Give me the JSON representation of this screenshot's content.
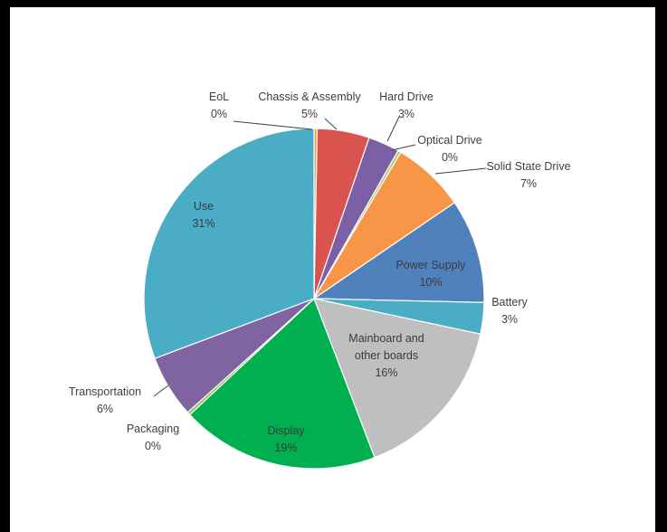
{
  "chart_data": {
    "type": "pie",
    "title": "",
    "slices": [
      {
        "label": "EoL",
        "value": 0.3,
        "display": "0%",
        "color": "#f0a040"
      },
      {
        "label": "Chassis & Assembly",
        "value": 5,
        "display": "5%",
        "color": "#d9534f"
      },
      {
        "label": "Hard Drive",
        "value": 3,
        "display": "3%",
        "color": "#7d5fa5"
      },
      {
        "label": "Optical Drive",
        "value": 0.3,
        "display": "0%",
        "color": "#b0c87a"
      },
      {
        "label": "Solid State Drive",
        "value": 7,
        "display": "7%",
        "color": "#f79646"
      },
      {
        "label": "Power Supply",
        "value": 10,
        "display": "10%",
        "color": "#4f81bd"
      },
      {
        "label": "Battery",
        "value": 3,
        "display": "3%",
        "color": "#4bacc6"
      },
      {
        "label": "Mainboard and other boards",
        "value": 16,
        "display": "16%",
        "color": "#bfbfbf"
      },
      {
        "label": "Display",
        "value": 19,
        "display": "19%",
        "color": "#00b050"
      },
      {
        "label": "Packaging",
        "value": 0.3,
        "display": "0%",
        "color": "#9bbb59"
      },
      {
        "label": "Transportation",
        "value": 6,
        "display": "6%",
        "color": "#8064a2"
      },
      {
        "label": "Use",
        "value": 31,
        "display": "31%",
        "color": "#4bacc6"
      }
    ]
  }
}
